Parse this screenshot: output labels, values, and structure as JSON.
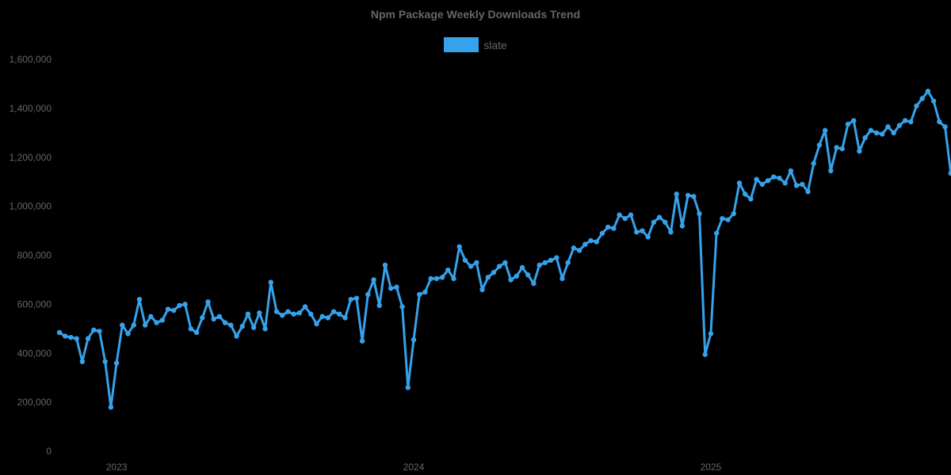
{
  "chart_data": {
    "type": "line",
    "title": "Npm Package Weekly Downloads Trend",
    "xlabel": "",
    "ylabel": "",
    "legend": {
      "position": "top",
      "entries": [
        "slate"
      ]
    },
    "grid": false,
    "ylim": [
      0,
      1600000
    ],
    "y_ticks": [
      "0",
      "200,000",
      "400,000",
      "600,000",
      "800,000",
      "1,000,000",
      "1,200,000",
      "1,400,000",
      "1,600,000"
    ],
    "x_ticks": [
      {
        "label": "2023",
        "week_index": 10
      },
      {
        "label": "2024",
        "week_index": 62
      },
      {
        "label": "2025",
        "week_index": 114
      }
    ],
    "series": [
      {
        "name": "slate",
        "color": "#36a2eb",
        "values": [
          485000,
          470000,
          465000,
          460000,
          366000,
          460000,
          495000,
          490000,
          366000,
          180000,
          360000,
          515000,
          480000,
          515000,
          620000,
          515000,
          550000,
          525000,
          535000,
          580000,
          575000,
          595000,
          600000,
          500000,
          485000,
          545000,
          610000,
          540000,
          550000,
          525000,
          515000,
          470000,
          510000,
          560000,
          505000,
          565000,
          500000,
          690000,
          570000,
          555000,
          570000,
          560000,
          565000,
          590000,
          560000,
          520000,
          550000,
          545000,
          570000,
          560000,
          545000,
          620000,
          625000,
          450000,
          640000,
          700000,
          595000,
          760000,
          665000,
          670000,
          590000,
          260000,
          455000,
          640000,
          650000,
          705000,
          705000,
          710000,
          740000,
          705000,
          835000,
          780000,
          755000,
          770000,
          660000,
          710000,
          730000,
          755000,
          770000,
          700000,
          715000,
          750000,
          720000,
          685000,
          760000,
          770000,
          780000,
          790000,
          705000,
          770000,
          830000,
          820000,
          845000,
          860000,
          855000,
          890000,
          915000,
          910000,
          965000,
          950000,
          965000,
          895000,
          900000,
          875000,
          935000,
          955000,
          935000,
          895000,
          1050000,
          920000,
          1045000,
          1040000,
          970000,
          395000,
          480000,
          890000,
          950000,
          945000,
          970000,
          1095000,
          1050000,
          1030000,
          1110000,
          1090000,
          1105000,
          1120000,
          1115000,
          1095000,
          1145000,
          1085000,
          1090000,
          1060000,
          1175000,
          1250000,
          1310000,
          1145000,
          1240000,
          1235000,
          1335000,
          1350000,
          1225000,
          1280000,
          1310000,
          1300000,
          1295000,
          1325000,
          1300000,
          1330000,
          1350000,
          1345000,
          1410000,
          1440000,
          1470000,
          1430000,
          1345000,
          1325000,
          1135000
        ]
      }
    ]
  },
  "ui": {
    "title": "Npm Package Weekly Downloads Trend",
    "legend_label": "slate"
  }
}
